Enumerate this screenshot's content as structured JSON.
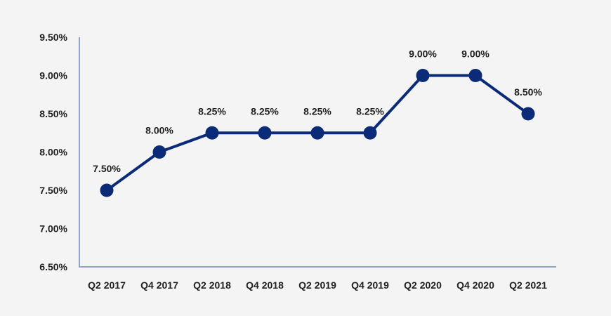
{
  "chart_data": {
    "type": "line",
    "title": "",
    "xlabel": "",
    "ylabel": "",
    "categories": [
      "Q2 2017",
      "Q4 2017",
      "Q2 2018",
      "Q4 2018",
      "Q2 2019",
      "Q4 2019",
      "Q2 2020",
      "Q4 2020",
      "Q2 2021"
    ],
    "series": [
      {
        "values": [
          7.5,
          8.0,
          8.25,
          8.25,
          8.25,
          8.25,
          9.0,
          9.0,
          8.5
        ],
        "labels": [
          "7.50%",
          "8.00%",
          "8.25%",
          "8.25%",
          "8.25%",
          "8.25%",
          "9.00%",
          "9.00%",
          "8.50%"
        ],
        "color": "#0b2a78"
      }
    ],
    "ylim": [
      6.5,
      9.5
    ],
    "y_ticks": [
      6.5,
      7.0,
      7.5,
      8.0,
      8.5,
      9.0,
      9.5
    ],
    "y_tick_labels": [
      "6.50%",
      "7.00%",
      "7.50%",
      "8.00%",
      "8.50%",
      "9.00%",
      "9.50%"
    ],
    "grid": false,
    "legend": "none",
    "axis_color": "#8fa3c7",
    "background": "#f4f4f4"
  }
}
